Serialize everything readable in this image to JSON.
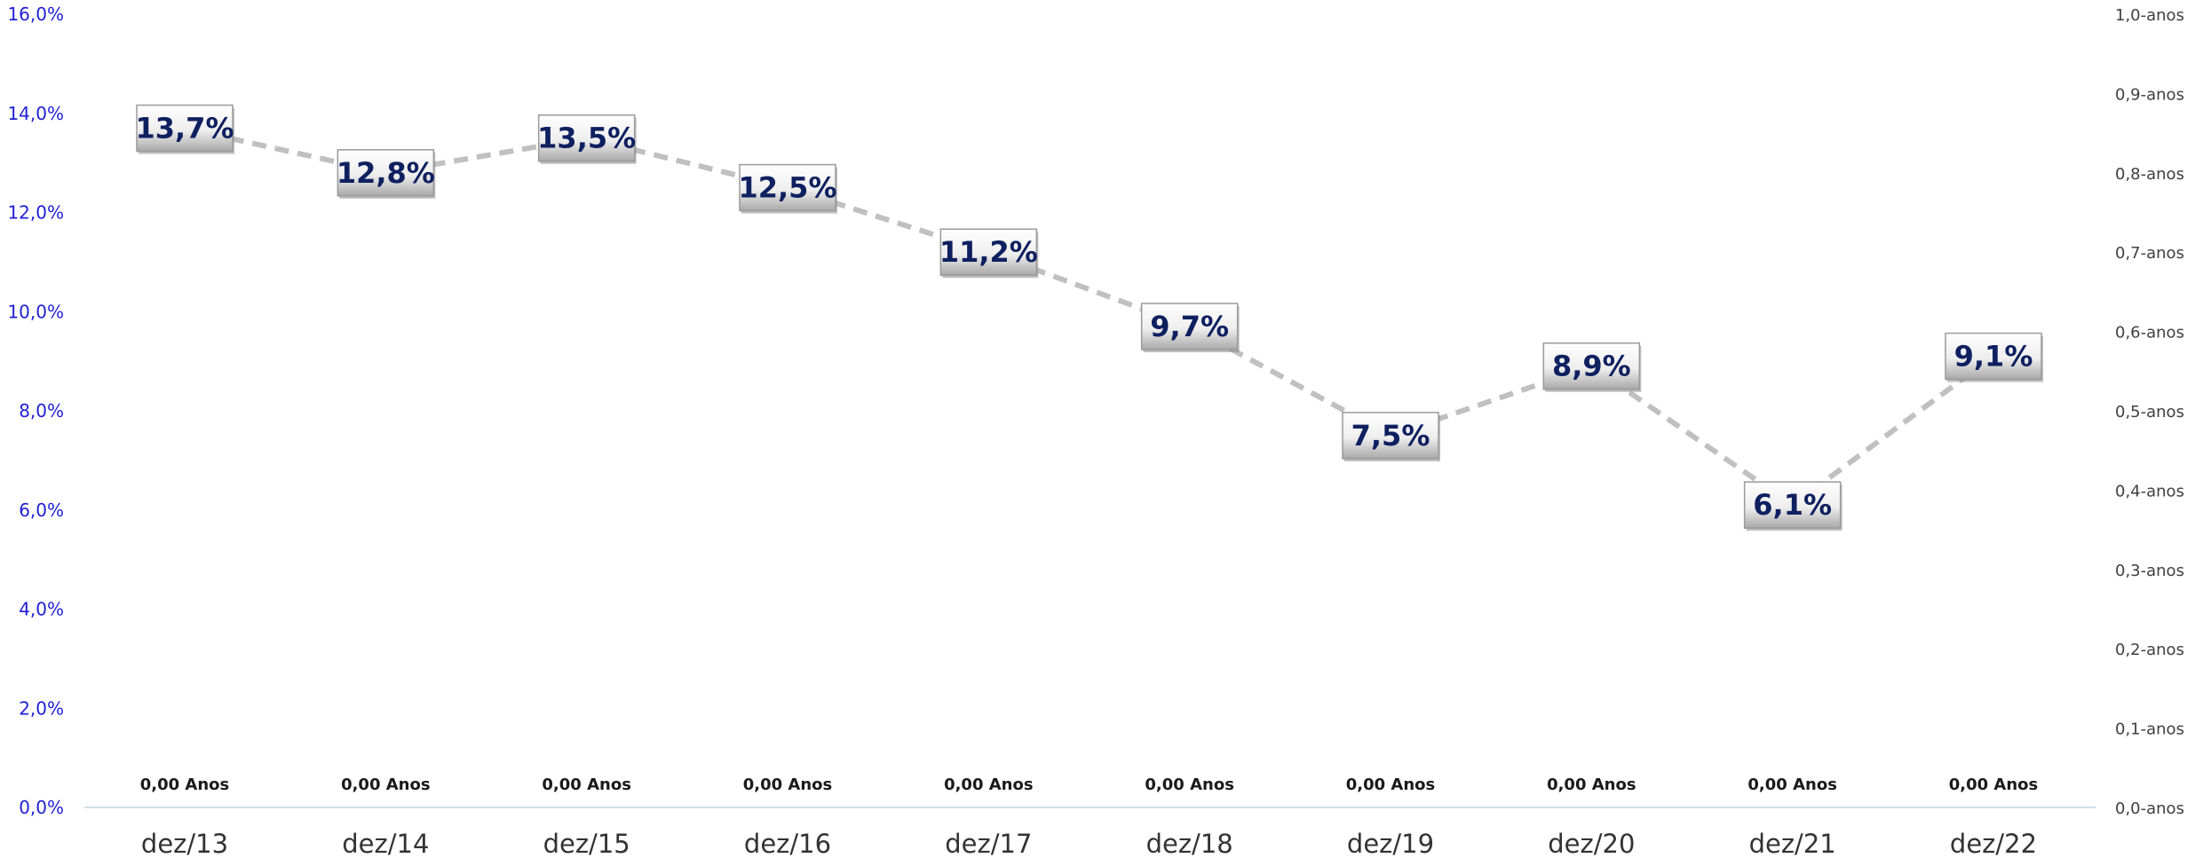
{
  "colors": {
    "left_axis": "#1f1fd6",
    "right_axis": "#404040",
    "x_axis_text": "#333333",
    "bottom_label": "#1a1a1a",
    "line": "#c0c0c0",
    "label_text": "#0f2060",
    "label_box_light": "#ffffff",
    "label_box_dark": "#a8a8a8",
    "axis_line": "#cfe0e6"
  },
  "chart_data": {
    "type": "line",
    "categories": [
      "dez/13",
      "dez/14",
      "dez/15",
      "dez/16",
      "dez/17",
      "dez/18",
      "dez/19",
      "dez/20",
      "dez/21",
      "dez/22"
    ],
    "series": [
      {
        "values": [
          13.7,
          12.8,
          13.5,
          12.5,
          11.2,
          9.7,
          7.5,
          8.9,
          6.1,
          9.1
        ],
        "labels": [
          "13,7%",
          "12,8%",
          "13,5%",
          "12,5%",
          "11,2%",
          "9,7%",
          "7,5%",
          "8,9%",
          "6,1%",
          "9,1%"
        ],
        "axis": "left"
      },
      {
        "values": [
          0,
          0,
          0,
          0,
          0,
          0,
          0,
          0,
          0,
          0
        ],
        "labels": [
          "0,00 Anos",
          "0,00 Anos",
          "0,00 Anos",
          "0,00 Anos",
          "0,00 Anos",
          "0,00 Anos",
          "0,00 Anos",
          "0,00 Anos",
          "0,00 Anos",
          "0,00 Anos"
        ],
        "axis": "right"
      }
    ],
    "left_axis": {
      "ylim": [
        0,
        16
      ],
      "ticks": [
        0,
        2,
        4,
        6,
        8,
        10,
        12,
        14,
        16
      ],
      "tick_labels": [
        "0,0%",
        "2,0%",
        "4,0%",
        "6,0%",
        "8,0%",
        "10,0%",
        "12,0%",
        "14,0%",
        "16,0%"
      ]
    },
    "right_axis": {
      "ylim": [
        0,
        1
      ],
      "ticks": [
        0,
        0.1,
        0.2,
        0.3,
        0.4,
        0.5,
        0.6,
        0.7,
        0.8,
        0.9,
        1.0
      ],
      "tick_labels": [
        "0,0-anos",
        "0,1-anos",
        "0,2-anos",
        "0,3-anos",
        "0,4-anos",
        "0,5-anos",
        "0,6-anos",
        "0,7-anos",
        "0,8-anos",
        "0,9-anos",
        "1,0-anos"
      ]
    },
    "grid": false,
    "legend": "none"
  }
}
